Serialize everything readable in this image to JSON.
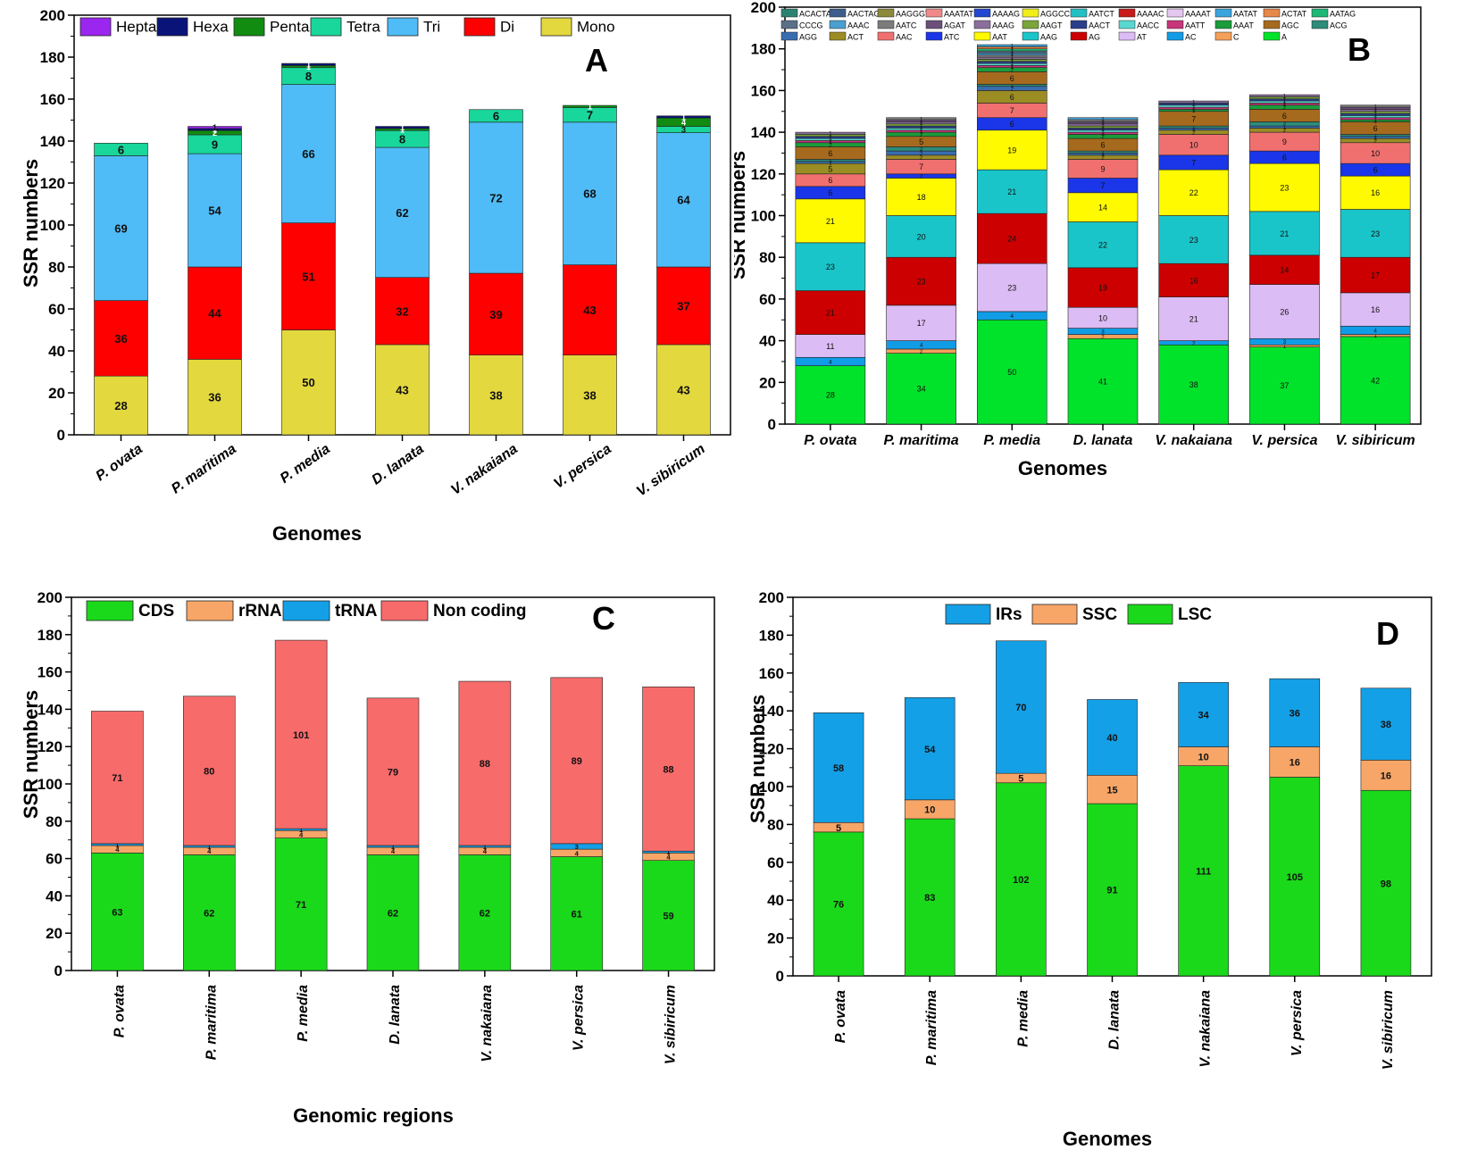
{
  "chart_data": [
    {
      "id": "A",
      "type": "bar",
      "stacked": true,
      "panel_label": "A",
      "title": "",
      "xlabel": "Genomes",
      "ylabel": "SSR numbers",
      "ylim": [
        0,
        200
      ],
      "yticks": [
        0,
        20,
        40,
        60,
        80,
        100,
        120,
        140,
        160,
        180,
        200
      ],
      "categories": [
        "P. ovata",
        "P. maritima",
        "P. media",
        "D. lanata",
        "V. nakaiana",
        "V. persica",
        "V. sibiricum"
      ],
      "category_label_style": "rotated",
      "legend_position": "top",
      "legend_order": [
        "Hepta",
        "Hexa",
        "Penta",
        "Tetra",
        "Tri",
        "Di",
        "Mono"
      ],
      "series": [
        {
          "name": "Mono",
          "color": "#e3d83e",
          "values": [
            28,
            36,
            50,
            43,
            38,
            38,
            43
          ]
        },
        {
          "name": "Di",
          "color": "#ff0000",
          "values": [
            36,
            44,
            51,
            32,
            39,
            43,
            37
          ]
        },
        {
          "name": "Tri",
          "color": "#4fbcf7",
          "values": [
            69,
            54,
            66,
            62,
            72,
            68,
            64
          ]
        },
        {
          "name": "Tetra",
          "color": "#19d69a",
          "values": [
            6,
            9,
            8,
            8,
            6,
            7,
            3
          ]
        },
        {
          "name": "Penta",
          "color": "#118c11",
          "values": [
            0,
            2,
            1,
            1,
            0,
            1,
            4
          ]
        },
        {
          "name": "Hexa",
          "color": "#0a1378",
          "values": [
            0,
            1,
            1,
            1,
            0,
            0,
            1
          ]
        },
        {
          "name": "Hepta",
          "color": "#9b26f0",
          "values": [
            0,
            1,
            0,
            0,
            0,
            0,
            0
          ]
        }
      ]
    },
    {
      "id": "B",
      "type": "bar",
      "stacked": true,
      "panel_label": "B",
      "title": "",
      "xlabel": "Genomes",
      "ylabel": "SSR numbers",
      "ylim": [
        0,
        200
      ],
      "yticks": [
        0,
        20,
        40,
        60,
        80,
        100,
        120,
        140,
        160,
        180,
        200
      ],
      "categories": [
        "P. ovata",
        "P. maritima",
        "P. media",
        "D. lanata",
        "V. nakaiana",
        "V. persica",
        "V. sibiricum"
      ],
      "category_label_style": "horizontal",
      "legend_position": "top",
      "legend_order": [
        "ACACTAT",
        "AACTAG",
        "AAGGGT",
        "AAATAT",
        "AAAAG",
        "AGGCC",
        "AATCT",
        "AAAAC",
        "AAAAT",
        "AATAT",
        "ACTAT",
        "AATAG",
        "CCCG",
        "AAAC",
        "AATC",
        "AGAT",
        "AAAG",
        "AAGT",
        "AACT",
        "AACC",
        "AATT",
        "AAAT",
        "AGC",
        "ACG",
        "AGG",
        "ACT",
        "AAC",
        "ATC",
        "AAT",
        "AAG",
        "AG",
        "AT",
        "AC",
        "C",
        "A"
      ],
      "series": [
        {
          "name": "A",
          "color": "#00e32a",
          "values": [
            28,
            34,
            50,
            41,
            38,
            37,
            42
          ]
        },
        {
          "name": "C",
          "color": "#f4a05a",
          "values": [
            0,
            2,
            0,
            2,
            0,
            1,
            1
          ]
        },
        {
          "name": "AC",
          "color": "#119ce6",
          "values": [
            4,
            4,
            4,
            3,
            2,
            3,
            4
          ]
        },
        {
          "name": "AT",
          "color": "#dcbcf4",
          "values": [
            11,
            17,
            23,
            10,
            21,
            26,
            16
          ]
        },
        {
          "name": "AG",
          "color": "#cc0000",
          "values": [
            21,
            23,
            24,
            19,
            16,
            14,
            17
          ]
        },
        {
          "name": "AAG",
          "color": "#1ac5c9",
          "values": [
            23,
            20,
            21,
            22,
            23,
            21,
            23
          ]
        },
        {
          "name": "AAT",
          "color": "#fffa00",
          "values": [
            21,
            18,
            19,
            14,
            22,
            23,
            16
          ]
        },
        {
          "name": "ATC",
          "color": "#1a36e8",
          "values": [
            6,
            2,
            6,
            7,
            7,
            6,
            6
          ]
        },
        {
          "name": "AAC",
          "color": "#f07070",
          "values": [
            6,
            7,
            7,
            9,
            10,
            9,
            10
          ]
        },
        {
          "name": "ACT",
          "color": "#9b8c24",
          "values": [
            5,
            2,
            6,
            2,
            2,
            2,
            2
          ]
        },
        {
          "name": "AGG",
          "color": "#3a6db0",
          "values": [
            1,
            2,
            2,
            1,
            1,
            1,
            1
          ]
        },
        {
          "name": "ACG",
          "color": "#2d8c7a",
          "values": [
            1,
            2,
            1,
            1,
            1,
            2,
            1
          ]
        },
        {
          "name": "AGC",
          "color": "#a66a1e",
          "values": [
            6,
            5,
            6,
            6,
            7,
            6,
            6
          ]
        },
        {
          "name": "AAAT",
          "color": "#1a9c3a",
          "values": [
            2,
            2,
            2,
            2,
            1,
            2,
            1
          ]
        },
        {
          "name": "AATT",
          "color": "#c8357a",
          "values": [
            1,
            1,
            1,
            1,
            1,
            1,
            1
          ]
        },
        {
          "name": "AACC",
          "color": "#58d8d0",
          "values": [
            1,
            1,
            1,
            1,
            1,
            1,
            1
          ]
        },
        {
          "name": "AACT",
          "color": "#2a3f8a",
          "values": [
            1,
            1,
            1,
            1,
            1,
            1,
            1
          ]
        },
        {
          "name": "AAGT",
          "color": "#7aa53a",
          "values": [
            1,
            1,
            1,
            1,
            0,
            1,
            1
          ]
        },
        {
          "name": "AAAG",
          "color": "#8a6f9c",
          "values": [
            1,
            1,
            1,
            1,
            1,
            1,
            1
          ]
        },
        {
          "name": "AGAT",
          "color": "#6b4f7a",
          "values": [
            0,
            1,
            0,
            1,
            0,
            0,
            1
          ]
        },
        {
          "name": "AATC",
          "color": "#7c7c7c",
          "values": [
            0,
            1,
            1,
            1,
            0,
            0,
            1
          ]
        },
        {
          "name": "AAAC",
          "color": "#4aa0d0",
          "values": [
            0,
            0,
            1,
            1,
            0,
            0,
            0
          ]
        },
        {
          "name": "CCCG",
          "color": "#5a7088",
          "values": [
            0,
            0,
            1,
            0,
            0,
            0,
            0
          ]
        },
        {
          "name": "AATAG",
          "color": "#1db874",
          "values": [
            0,
            0,
            1,
            0,
            0,
            0,
            0
          ]
        },
        {
          "name": "ACTAT",
          "color": "#e8874a",
          "values": [
            0,
            0,
            1,
            0,
            0,
            0,
            0
          ]
        },
        {
          "name": "AATAT",
          "color": "#3aa4dc",
          "values": [
            0,
            0,
            1,
            0,
            0,
            0,
            0
          ]
        },
        {
          "name": "AAAAT",
          "color": "#e4c8f0",
          "values": [
            0,
            0,
            0,
            0,
            0,
            0,
            0
          ]
        },
        {
          "name": "AAAAC",
          "color": "#c81a1a",
          "values": [
            0,
            0,
            0,
            0,
            0,
            0,
            0
          ]
        },
        {
          "name": "AATCT",
          "color": "#22c0c4",
          "values": [
            0,
            0,
            0,
            0,
            0,
            0,
            0
          ]
        },
        {
          "name": "AGGCC",
          "color": "#f2ee1a",
          "values": [
            0,
            0,
            0,
            0,
            0,
            0,
            0
          ]
        },
        {
          "name": "AAAAG",
          "color": "#2346d2",
          "values": [
            0,
            0,
            0,
            0,
            0,
            0,
            0
          ]
        },
        {
          "name": "AAATAT",
          "color": "#f08a8a",
          "values": [
            0,
            0,
            0,
            0,
            0,
            0,
            0
          ]
        },
        {
          "name": "AAGGGT",
          "color": "#8c8a3a",
          "values": [
            0,
            0,
            0,
            0,
            0,
            0,
            0
          ]
        },
        {
          "name": "AACTAG",
          "color": "#3c5c8c",
          "values": [
            0,
            0,
            0,
            0,
            0,
            0,
            0
          ]
        },
        {
          "name": "ACACTAT",
          "color": "#2c8270",
          "values": [
            0,
            0,
            0,
            0,
            0,
            0,
            0
          ]
        }
      ]
    },
    {
      "id": "C",
      "type": "bar",
      "stacked": true,
      "panel_label": "C",
      "title": "",
      "xlabel": "Genomic regions",
      "ylabel": "SSR numbers",
      "ylim": [
        0,
        200
      ],
      "yticks": [
        0,
        20,
        40,
        60,
        80,
        100,
        120,
        140,
        160,
        180,
        200
      ],
      "categories": [
        "P. ovata",
        "P. maritima",
        "P. media",
        "D. lanata",
        "V. nakaiana",
        "V. persica",
        "V. sibiricum"
      ],
      "category_label_style": "vertical",
      "legend_position": "top",
      "legend_order": [
        "CDS",
        "rRNA",
        "tRNA",
        "Non coding"
      ],
      "series": [
        {
          "name": "CDS",
          "color": "#1ad91a",
          "values": [
            63,
            62,
            71,
            62,
            62,
            61,
            59
          ]
        },
        {
          "name": "rRNA",
          "color": "#f7a668",
          "values": [
            4,
            4,
            4,
            4,
            4,
            4,
            4
          ]
        },
        {
          "name": "tRNA",
          "color": "#14a0e6",
          "values": [
            1,
            1,
            1,
            1,
            1,
            3,
            1
          ]
        },
        {
          "name": "Non coding",
          "color": "#f76b6b",
          "values": [
            71,
            80,
            101,
            79,
            88,
            89,
            88
          ]
        }
      ]
    },
    {
      "id": "D",
      "type": "bar",
      "stacked": true,
      "panel_label": "D",
      "title": "",
      "xlabel": "Genomes",
      "ylabel": "SSR numbers",
      "ylim": [
        0,
        200
      ],
      "yticks": [
        0,
        20,
        40,
        60,
        80,
        100,
        120,
        140,
        160,
        180,
        200
      ],
      "categories": [
        "P. ovata",
        "P. maritima",
        "P. media",
        "D. lanata",
        "V. nakaiana",
        "V. persica",
        "V. sibiricum"
      ],
      "category_label_style": "vertical",
      "legend_position": "top",
      "legend_order": [
        "IRs",
        "SSC",
        "LSC"
      ],
      "series": [
        {
          "name": "LSC",
          "color": "#1ad91a",
          "values": [
            76,
            83,
            102,
            91,
            111,
            105,
            98
          ]
        },
        {
          "name": "SSC",
          "color": "#f7a668",
          "values": [
            5,
            10,
            5,
            15,
            10,
            16,
            16
          ]
        },
        {
          "name": "IRs",
          "color": "#14a0e6",
          "values": [
            58,
            54,
            70,
            40,
            34,
            36,
            38
          ]
        }
      ]
    }
  ]
}
